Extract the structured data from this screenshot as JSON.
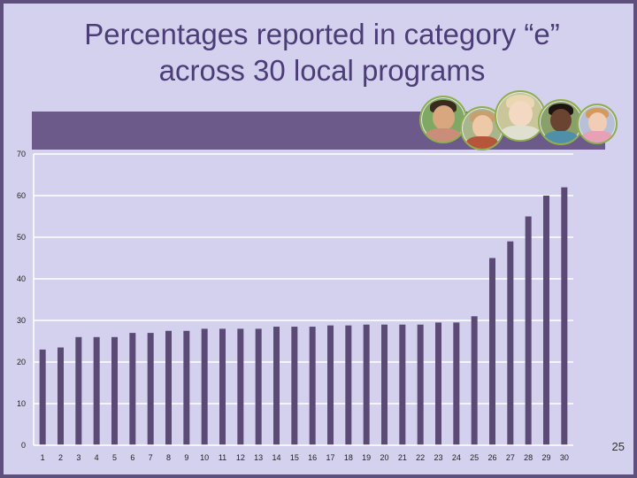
{
  "slide": {
    "title_line1": "Percentages reported in category “e”",
    "title_line2": "across 30 local programs",
    "slide_number": "25"
  },
  "colors": {
    "background": "#d3d1ee",
    "title": "#4c3d77",
    "band": "#6c5a8a",
    "bar": "#5b4a75",
    "border": "#5e4f7c"
  },
  "photos": [
    {
      "name": "child-photo-1"
    },
    {
      "name": "child-photo-2"
    },
    {
      "name": "child-photo-3"
    },
    {
      "name": "child-photo-4"
    },
    {
      "name": "child-photo-5"
    }
  ],
  "chart_data": {
    "type": "bar",
    "title": "",
    "xlabel": "",
    "ylabel": "",
    "ylim": [
      0,
      70
    ],
    "yticks": [
      0,
      10,
      20,
      30,
      40,
      50,
      60,
      70
    ],
    "grid": true,
    "categories": [
      "1",
      "2",
      "3",
      "4",
      "5",
      "6",
      "7",
      "8",
      "9",
      "10",
      "11",
      "12",
      "13",
      "14",
      "15",
      "16",
      "17",
      "18",
      "19",
      "20",
      "21",
      "22",
      "23",
      "24",
      "25",
      "26",
      "27",
      "28",
      "29",
      "30"
    ],
    "values": [
      23,
      23.5,
      26,
      26,
      26,
      27,
      27,
      27.5,
      27.5,
      28,
      28,
      28,
      28,
      28.5,
      28.5,
      28.5,
      28.8,
      28.8,
      29,
      29,
      29,
      29,
      29.5,
      29.5,
      31,
      45,
      49,
      55,
      60,
      62
    ]
  }
}
